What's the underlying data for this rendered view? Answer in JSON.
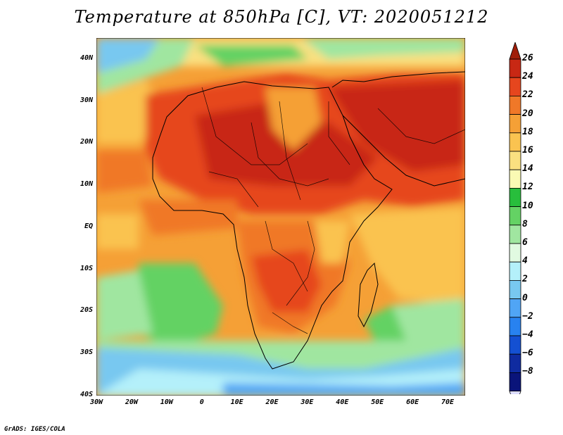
{
  "title": "Temperature at 850hPa [C], VT: 2020051212",
  "footer": "GrADS: IGES/COLA",
  "map": {
    "projection": "lat-lon",
    "lon_range": [
      -30,
      75
    ],
    "lat_range": [
      -40,
      45
    ],
    "field": "temperature",
    "features": [
      "coastlines",
      "country-borders"
    ]
  },
  "y_axis": {
    "ticks": [
      {
        "lat": 40,
        "label": "40N"
      },
      {
        "lat": 30,
        "label": "30N"
      },
      {
        "lat": 20,
        "label": "20N"
      },
      {
        "lat": 10,
        "label": "10N"
      },
      {
        "lat": 0,
        "label": "EQ"
      },
      {
        "lat": -10,
        "label": "10S"
      },
      {
        "lat": -20,
        "label": "20S"
      },
      {
        "lat": -30,
        "label": "30S"
      },
      {
        "lat": -40,
        "label": "40S"
      }
    ]
  },
  "x_axis": {
    "ticks": [
      {
        "lon": -30,
        "label": "30W"
      },
      {
        "lon": -20,
        "label": "20W"
      },
      {
        "lon": -10,
        "label": "10W"
      },
      {
        "lon": 0,
        "label": "0"
      },
      {
        "lon": 10,
        "label": "10E"
      },
      {
        "lon": 20,
        "label": "20E"
      },
      {
        "lon": 30,
        "label": "30E"
      },
      {
        "lon": 40,
        "label": "40E"
      },
      {
        "lon": 50,
        "label": "50E"
      },
      {
        "lon": 60,
        "label": "60E"
      },
      {
        "lon": 70,
        "label": "70E"
      }
    ]
  },
  "colorbar": {
    "levels": [
      {
        "value": 26,
        "label": "26",
        "color": "#c82814"
      },
      {
        "value": 24,
        "label": "24",
        "color": "#e6461e"
      },
      {
        "value": 22,
        "label": "22",
        "color": "#f07828"
      },
      {
        "value": 20,
        "label": "20",
        "color": "#f5a036"
      },
      {
        "value": 18,
        "label": "18",
        "color": "#fac350"
      },
      {
        "value": 16,
        "label": "16",
        "color": "#fae080"
      },
      {
        "value": 14,
        "label": "14",
        "color": "#fafab4"
      },
      {
        "value": 12,
        "label": "12",
        "color": "#28be3c"
      },
      {
        "value": 10,
        "label": "10",
        "color": "#64d264"
      },
      {
        "value": 8,
        "label": "8",
        "color": "#a0e6a0"
      },
      {
        "value": 6,
        "label": "6",
        "color": "#e1fae1"
      },
      {
        "value": 4,
        "label": "4",
        "color": "#b4f0fa"
      },
      {
        "value": 2,
        "label": "2",
        "color": "#78c8f0"
      },
      {
        "value": 0,
        "label": "0",
        "color": "#50a5f5"
      },
      {
        "value": -2,
        "label": "−2",
        "color": "#2882f0"
      },
      {
        "value": -4,
        "label": "−4",
        "color": "#1450d2"
      },
      {
        "value": -6,
        "label": "−6",
        "color": "#0f2ba0"
      },
      {
        "value": -8,
        "label": "−8",
        "color": "#0a147a"
      }
    ],
    "top_color": "#a01e0a",
    "bottom_color": "#dcdcff"
  }
}
